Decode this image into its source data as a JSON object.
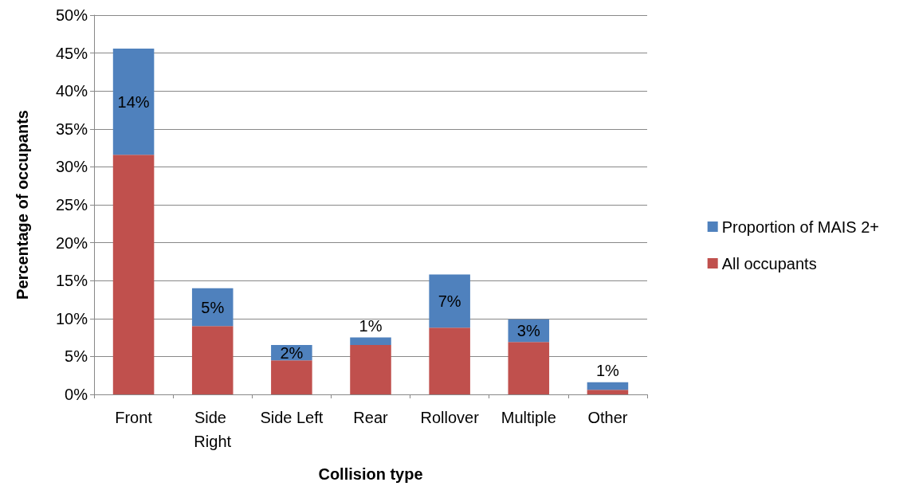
{
  "chart_data": {
    "type": "bar",
    "stacked": true,
    "xlabel": "Collision type",
    "ylabel": "Percentage of occupants",
    "categories": [
      "Front",
      "Side Right",
      "Side Left",
      "Rear",
      "Rollover",
      "Multiple",
      "Other"
    ],
    "series": [
      {
        "name": "All occupants",
        "color": "#c0504d",
        "values": [
          31.6,
          9.0,
          4.5,
          6.5,
          8.8,
          6.9,
          0.6
        ]
      },
      {
        "name": "Proportion of MAIS 2+",
        "color": "#4f81bd",
        "values": [
          14,
          5,
          2,
          1,
          7,
          3,
          1
        ],
        "value_labels": [
          "14%",
          "5%",
          "2%",
          "1%",
          "7%",
          "3%",
          "1%"
        ]
      }
    ],
    "ylim": [
      0,
      50
    ],
    "yticks": [
      {
        "value": 0,
        "label": "0%"
      },
      {
        "value": 5,
        "label": "5%"
      },
      {
        "value": 10,
        "label": "10%"
      },
      {
        "value": 15,
        "label": "15%"
      },
      {
        "value": 20,
        "label": "20%"
      },
      {
        "value": 25,
        "label": "25%"
      },
      {
        "value": 30,
        "label": "30%"
      },
      {
        "value": 35,
        "label": "35%"
      },
      {
        "value": 40,
        "label": "40%"
      },
      {
        "value": 45,
        "label": "45%"
      },
      {
        "value": 50,
        "label": "50%"
      }
    ],
    "grid": "y",
    "legend": "right"
  }
}
